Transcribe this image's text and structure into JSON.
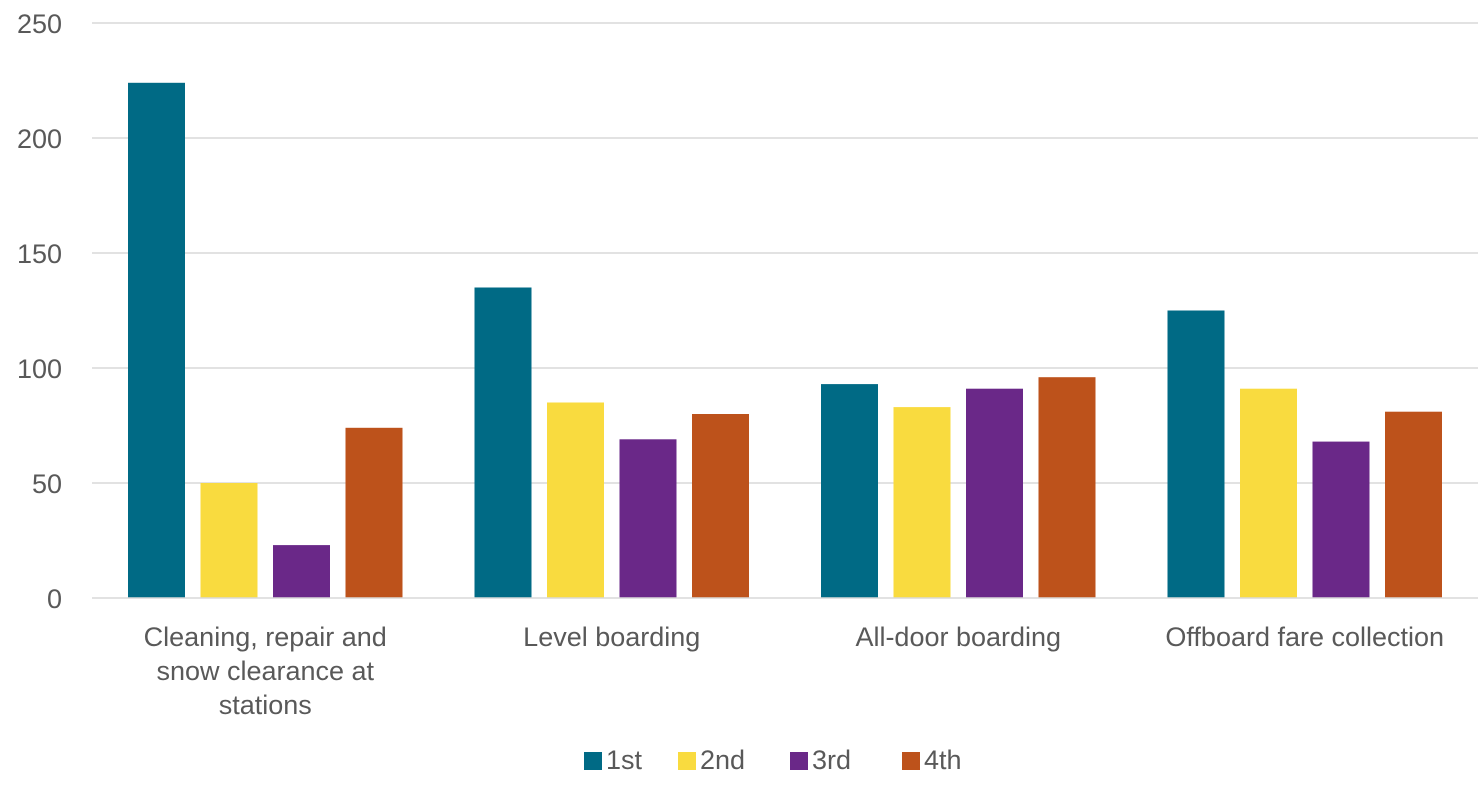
{
  "chart_data": {
    "type": "bar",
    "title": "",
    "xlabel": "",
    "ylabel": "",
    "categories": [
      [
        "Cleaning, repair and",
        "snow clearance at",
        "stations"
      ],
      [
        "Level boarding"
      ],
      [
        "All-door boarding"
      ],
      [
        "Offboard fare collection"
      ]
    ],
    "series": [
      {
        "name": "1st",
        "color": "#006a85",
        "values": [
          224,
          135,
          93,
          125
        ]
      },
      {
        "name": "2nd",
        "color": "#f9db3f",
        "values": [
          50,
          85,
          83,
          91
        ]
      },
      {
        "name": "3rd",
        "color": "#6a2888",
        "values": [
          23,
          69,
          91,
          68
        ]
      },
      {
        "name": "4th",
        "color": "#bd521b",
        "values": [
          74,
          80,
          96,
          81
        ]
      }
    ],
    "ylim": [
      0,
      250
    ],
    "yticks": [
      0,
      50,
      100,
      150,
      200,
      250
    ],
    "grid": true,
    "legend": "bottom"
  }
}
